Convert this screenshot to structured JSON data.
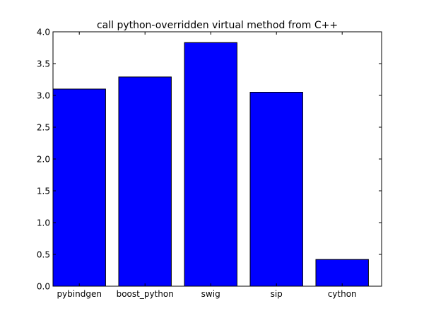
{
  "chart_data": {
    "type": "bar",
    "title": "call python-overridden virtual method from C++",
    "xlabel": "",
    "ylabel": "",
    "categories": [
      "pybindgen",
      "boost_python",
      "swig",
      "sip",
      "cython"
    ],
    "values": [
      3.1,
      3.29,
      3.83,
      3.05,
      0.42
    ],
    "ylim": [
      0,
      4.0
    ],
    "yticks": [
      "0.0",
      "0.5",
      "1.0",
      "1.5",
      "2.0",
      "2.5",
      "3.0",
      "3.5",
      "4.0"
    ],
    "grid": false,
    "bar_color": "#0000ff",
    "bar_edge_color": "#000000"
  }
}
